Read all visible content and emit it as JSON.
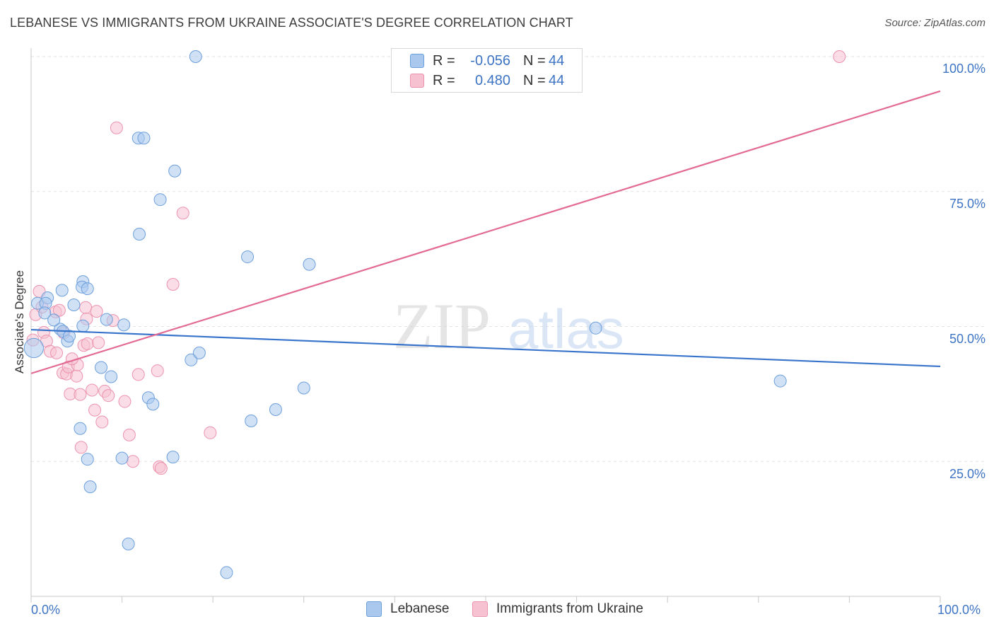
{
  "title": "LEBANESE VS IMMIGRANTS FROM UKRAINE ASSOCIATE'S DEGREE CORRELATION CHART",
  "source": "Source: ZipAtlas.com",
  "watermark": {
    "zip": "ZIP",
    "atlas": "atlas"
  },
  "colors": {
    "blue_fill": "#aac8ee",
    "blue_stroke": "#6d9fdb",
    "blue_line": "#3874cb",
    "pink_fill": "#f6c1d1",
    "pink_stroke": "#ec93ae",
    "pink_line": "#e26a94",
    "tick_text": "#3d74c4"
  },
  "legend": {
    "rows": [
      {
        "r_label": "R =",
        "r_value": "-0.056",
        "n_label": "N =",
        "n_value": "44"
      },
      {
        "r_label": "R =",
        "r_value": "0.480",
        "n_label": "N =",
        "n_value": "44"
      }
    ]
  },
  "bottom_legend": [
    "Lebanese",
    "Immigrants from Ukraine"
  ],
  "chart_data": {
    "type": "scatter",
    "title": "LEBANESE VS IMMIGRANTS FROM UKRAINE ASSOCIATE'S DEGREE CORRELATION CHART",
    "xlabel": "",
    "ylabel": "Associate's Degree",
    "xlim": [
      0,
      100
    ],
    "ylim": [
      0,
      100
    ],
    "x_tick_labels": [
      "0.0%",
      "100.0%"
    ],
    "y_tick_labels": [
      "25.0%",
      "50.0%",
      "75.0%",
      "100.0%"
    ],
    "y_ticks": [
      25,
      50,
      75,
      100
    ],
    "series": [
      {
        "name": "Lebanese",
        "r": -0.056,
        "n": 44,
        "trend": {
          "x": [
            0,
            100
          ],
          "y": [
            49.4,
            42.6
          ]
        },
        "points": [
          [
            0.3,
            46.0,
            1.6
          ],
          [
            0.7,
            54.3,
            1
          ],
          [
            1.8,
            55.3,
            1
          ],
          [
            1.6,
            54.3,
            1
          ],
          [
            1.5,
            52.5,
            1
          ],
          [
            3.4,
            56.7,
            1
          ],
          [
            3.2,
            49.5,
            1
          ],
          [
            3.5,
            49.1,
            1
          ],
          [
            4.0,
            47.3,
            1
          ],
          [
            4.7,
            54.0,
            1
          ],
          [
            5.7,
            58.3,
            1
          ],
          [
            5.6,
            57.3,
            1
          ],
          [
            6.2,
            57.0,
            1
          ],
          [
            5.7,
            50.1,
            1
          ],
          [
            8.3,
            51.3,
            1
          ],
          [
            10.2,
            50.3,
            1
          ],
          [
            11.8,
            84.9,
            1
          ],
          [
            12.4,
            84.9,
            1
          ],
          [
            18.1,
            100.0,
            1
          ],
          [
            15.8,
            78.8,
            1
          ],
          [
            14.2,
            73.5,
            1
          ],
          [
            11.9,
            67.1,
            1
          ],
          [
            7.7,
            42.4,
            1
          ],
          [
            8.8,
            40.7,
            1
          ],
          [
            12.9,
            36.8,
            1
          ],
          [
            13.4,
            35.6,
            1
          ],
          [
            17.6,
            43.8,
            1
          ],
          [
            18.5,
            45.1,
            1
          ],
          [
            23.8,
            62.9,
            1
          ],
          [
            30.6,
            61.5,
            1
          ],
          [
            26.9,
            34.6,
            1
          ],
          [
            24.2,
            32.5,
            1
          ],
          [
            30.0,
            38.6,
            1
          ],
          [
            5.4,
            31.1,
            1
          ],
          [
            6.2,
            25.4,
            1
          ],
          [
            10.0,
            25.6,
            1
          ],
          [
            15.6,
            25.8,
            1
          ],
          [
            6.5,
            20.3,
            1
          ],
          [
            10.7,
            9.7,
            1
          ],
          [
            21.5,
            4.4,
            1
          ],
          [
            62.1,
            49.7,
            1
          ],
          [
            82.4,
            39.9,
            1
          ],
          [
            2.5,
            51.2,
            1
          ],
          [
            4.2,
            48.2,
            1
          ]
        ]
      },
      {
        "name": "Immigrants from Ukraine",
        "r": 0.48,
        "n": 44,
        "trend": {
          "x": [
            0,
            100
          ],
          "y": [
            41.3,
            93.6
          ]
        },
        "points": [
          [
            0.2,
            47.5,
            1
          ],
          [
            0.5,
            52.2,
            1
          ],
          [
            0.9,
            56.5,
            1
          ],
          [
            1.4,
            48.9,
            1
          ],
          [
            1.7,
            47.3,
            1
          ],
          [
            2.1,
            45.4,
            1
          ],
          [
            2.7,
            52.7,
            1
          ],
          [
            2.8,
            45.1,
            1
          ],
          [
            3.1,
            53.0,
            1
          ],
          [
            3.5,
            41.4,
            1
          ],
          [
            3.9,
            41.2,
            1
          ],
          [
            4.1,
            42.5,
            1
          ],
          [
            4.3,
            37.5,
            1
          ],
          [
            5.0,
            40.8,
            1
          ],
          [
            5.1,
            42.9,
            1
          ],
          [
            5.4,
            37.4,
            1
          ],
          [
            5.8,
            46.5,
            1
          ],
          [
            6.0,
            53.5,
            1
          ],
          [
            6.2,
            46.8,
            1
          ],
          [
            6.7,
            38.2,
            1
          ],
          [
            7.0,
            34.5,
            1
          ],
          [
            7.2,
            52.8,
            1
          ],
          [
            7.8,
            32.3,
            1
          ],
          [
            8.1,
            38.0,
            1
          ],
          [
            8.5,
            37.2,
            1
          ],
          [
            9.0,
            51.1,
            1
          ],
          [
            10.3,
            36.1,
            1
          ],
          [
            10.8,
            29.9,
            1
          ],
          [
            11.2,
            25.0,
            1
          ],
          [
            11.8,
            41.1,
            1
          ],
          [
            13.9,
            41.8,
            1
          ],
          [
            14.1,
            24.0,
            1
          ],
          [
            14.3,
            23.7,
            1
          ],
          [
            15.6,
            57.8,
            1
          ],
          [
            16.7,
            71.0,
            1
          ],
          [
            19.7,
            30.3,
            1
          ],
          [
            9.4,
            86.8,
            1
          ],
          [
            88.9,
            100.0,
            1
          ],
          [
            6.1,
            51.4,
            1
          ],
          [
            3.6,
            48.8,
            1
          ],
          [
            1.2,
            53.6,
            1
          ],
          [
            5.5,
            27.6,
            1
          ],
          [
            7.4,
            47.0,
            1
          ],
          [
            4.5,
            44.0,
            1
          ]
        ]
      }
    ]
  }
}
